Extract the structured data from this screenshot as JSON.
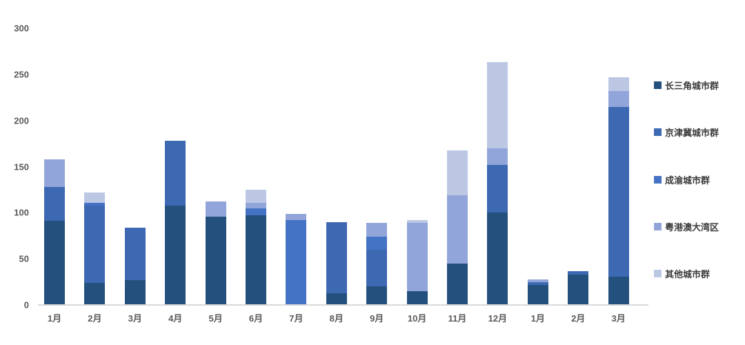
{
  "chart_data": {
    "type": "bar",
    "stacked": true,
    "title": "",
    "xlabel": "",
    "ylabel": "",
    "categories": [
      "1月",
      "2月",
      "3月",
      "4月",
      "5月",
      "6月",
      "7月",
      "8月",
      "9月",
      "10月",
      "11月",
      "12月",
      "1月",
      "2月",
      "3月"
    ],
    "series": [
      {
        "name": "长三角城市群",
        "color": "#24507E",
        "values": [
          91,
          24,
          27,
          108,
          96,
          97,
          0,
          13,
          20,
          15,
          45,
          100,
          22,
          33,
          31
        ]
      },
      {
        "name": "京津冀城市群",
        "color": "#3D68B2",
        "values": [
          37,
          84,
          57,
          70,
          0,
          0,
          0,
          77,
          40,
          0,
          0,
          52,
          3,
          4,
          184
        ]
      },
      {
        "name": "成渝城市群",
        "color": "#4472C4",
        "values": [
          0,
          3,
          0,
          0,
          0,
          8,
          92,
          0,
          14,
          0,
          0,
          0,
          0,
          0,
          0
        ]
      },
      {
        "name": "粤港澳大湾区",
        "color": "#92A5DA",
        "values": [
          30,
          0,
          0,
          0,
          16,
          6,
          7,
          0,
          15,
          74,
          74,
          18,
          3,
          0,
          17
        ]
      },
      {
        "name": "其他城市群",
        "color": "#BCC7E4",
        "values": [
          0,
          11,
          0,
          0,
          0,
          14,
          0,
          0,
          0,
          3,
          49,
          93,
          0,
          0,
          15
        ]
      }
    ],
    "totals": [
      158,
      122,
      84,
      178,
      112,
      125,
      99,
      90,
      89,
      92,
      168,
      263,
      28,
      37,
      247
    ],
    "yticks": [
      0,
      50,
      100,
      150,
      200,
      250,
      300
    ],
    "ylim": [
      0,
      300
    ],
    "grid": false,
    "legend_position": "right"
  },
  "colors": {
    "background": "#FFFFFF",
    "axis_line": "#D9D9D9",
    "tick_label": "#595959",
    "legend_text": "#3A3A3A"
  }
}
